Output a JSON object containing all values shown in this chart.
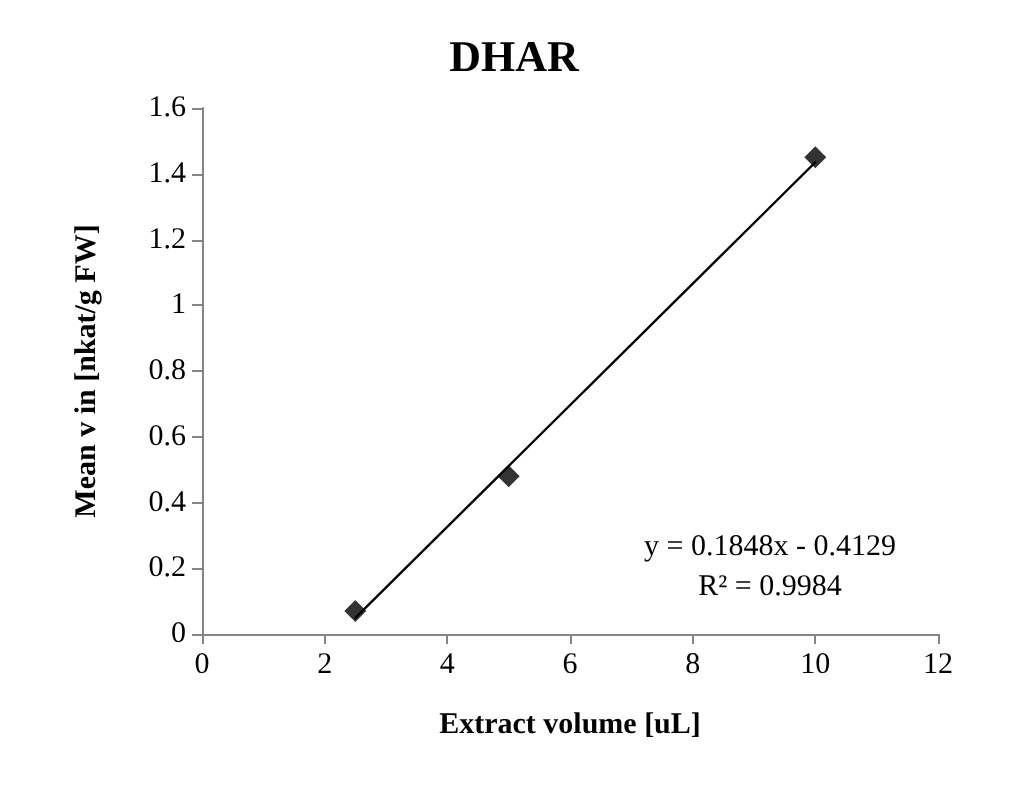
{
  "chart_data": {
    "type": "scatter",
    "title": "DHAR",
    "xlabel": "Extract volume [uL]",
    "ylabel": "Mean v in [nkat/g FW]",
    "x": [
      2.5,
      5,
      10
    ],
    "series": [
      {
        "color": "#000000",
        "marker": "diamond",
        "values": [
          0.07,
          0.48,
          1.45
        ]
      },
      {
        "type": "line",
        "color": "#000000",
        "marker": "none",
        "line_style": "solid",
        "x": [
          2.5,
          10
        ],
        "values": [
          0.049,
          1.435
        ]
      }
    ],
    "annotations": [
      "y = 0.1848x - 0.4129",
      "R² = 0.9984"
    ],
    "xlim": [
      0,
      12
    ],
    "xticks": [
      0,
      2,
      4,
      6,
      8,
      10,
      12
    ],
    "ylim": [
      0,
      1.6
    ],
    "yticks": [
      0,
      0.2,
      0.4,
      0.6,
      0.8,
      1,
      1.2,
      1.4,
      1.6
    ],
    "grid": false
  }
}
